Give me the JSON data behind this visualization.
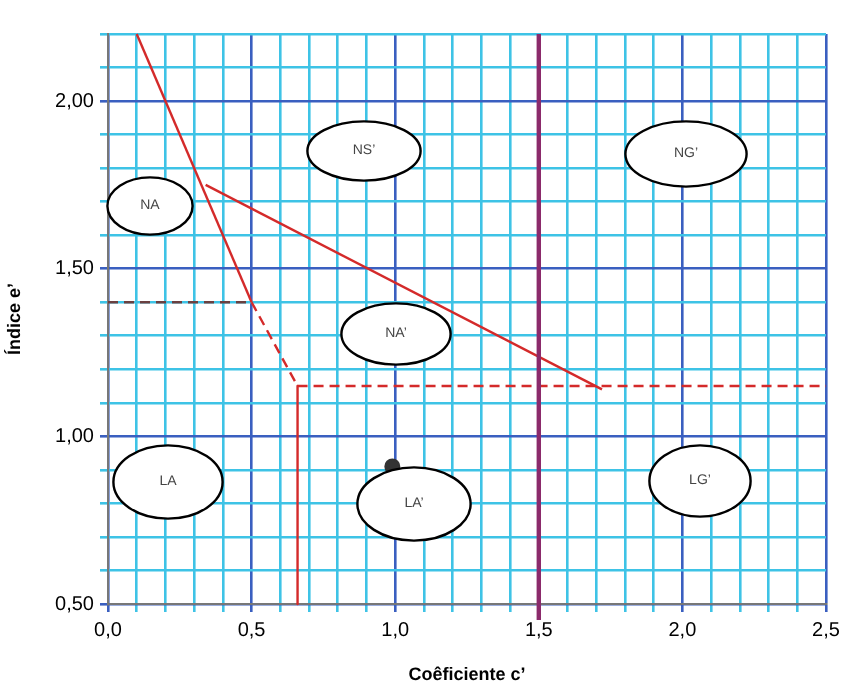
{
  "chart_data": {
    "type": "line",
    "xlabel": "Coêficiente c’",
    "ylabel": "Índice e’",
    "xlim": [
      0,
      2.5
    ],
    "ylim": [
      0.5,
      2.2
    ],
    "xticks": [
      {
        "value": 0,
        "label": "0,0"
      },
      {
        "value": 0.1,
        "label": null
      },
      {
        "value": 0.2,
        "label": null
      },
      {
        "value": 0.3,
        "label": null
      },
      {
        "value": 0.4,
        "label": null
      },
      {
        "value": 0.5,
        "label": "0,5"
      },
      {
        "value": 0.6,
        "label": null
      },
      {
        "value": 0.7,
        "label": null
      },
      {
        "value": 0.8,
        "label": null
      },
      {
        "value": 0.9,
        "label": null
      },
      {
        "value": 1,
        "label": "1,0"
      },
      {
        "value": 1.1,
        "label": null
      },
      {
        "value": 1.2,
        "label": null
      },
      {
        "value": 1.3,
        "label": null
      },
      {
        "value": 1.4,
        "label": null
      },
      {
        "value": 1.5,
        "label": "1,5"
      },
      {
        "value": 1.6,
        "label": null
      },
      {
        "value": 1.7,
        "label": null
      },
      {
        "value": 1.8,
        "label": null
      },
      {
        "value": 1.9,
        "label": null
      },
      {
        "value": 2,
        "label": "2,0"
      },
      {
        "value": 2.1,
        "label": null
      },
      {
        "value": 2.2,
        "label": null
      },
      {
        "value": 2.3,
        "label": null
      },
      {
        "value": 2.4,
        "label": null
      },
      {
        "value": 2.5,
        "label": "2,5"
      }
    ],
    "yticks": [
      {
        "value": 0.5,
        "label": "0,50"
      },
      {
        "value": 0.6,
        "label": null
      },
      {
        "value": 0.7,
        "label": null
      },
      {
        "value": 0.8,
        "label": null
      },
      {
        "value": 0.9,
        "label": null
      },
      {
        "value": 1,
        "label": "1,00"
      },
      {
        "value": 1.1,
        "label": null
      },
      {
        "value": 1.2,
        "label": null
      },
      {
        "value": 1.3,
        "label": null
      },
      {
        "value": 1.4,
        "label": null
      },
      {
        "value": 1.5,
        "label": "1,50"
      },
      {
        "value": 1.6,
        "label": null
      },
      {
        "value": 1.7,
        "label": null
      },
      {
        "value": 1.8,
        "label": null
      },
      {
        "value": 1.9,
        "label": null
      },
      {
        "value": 2,
        "label": "2,00"
      },
      {
        "value": 2.1,
        "label": null
      },
      {
        "value": 2.2,
        "label": null
      }
    ],
    "grid": true,
    "legend": false,
    "series": [
      {
        "color": "#d42a2a",
        "x": [
          0.1,
          0.5
        ],
        "values": [
          2.2,
          1.4
        ],
        "line_style": "solid"
      },
      {
        "color": "#d42a2a",
        "x": [
          0.5,
          0.66
        ],
        "values": [
          1.4,
          1.15
        ],
        "line_style": "dashed"
      },
      {
        "color": "#6a4040",
        "x": [
          0,
          0.5
        ],
        "values": [
          1.4,
          1.4
        ],
        "line_style": "dashed"
      },
      {
        "color": "#d42a2a",
        "x": [
          0.66,
          0.66
        ],
        "values": [
          1.15,
          0.5
        ],
        "line_style": "solid"
      },
      {
        "color": "#d42a2a",
        "x": [
          0.66,
          2.5
        ],
        "values": [
          1.15,
          1.15
        ],
        "line_style": "dashed"
      },
      {
        "color": "#d42a2a",
        "x": [
          0.34,
          1.72
        ],
        "values": [
          1.75,
          1.14
        ],
        "line_style": "solid"
      },
      {
        "type": "scatter",
        "color": "#333333",
        "x": [
          0.99
        ],
        "values": [
          0.91
        ],
        "marker": "circle"
      }
    ],
    "ref_lines": [
      {
        "axis": "x",
        "value": 1.5,
        "color": "#8b2a6b"
      }
    ],
    "annotations": [
      "NA",
      "NS’",
      "NG’",
      "NA’",
      "LA",
      "LA’",
      "LG’"
    ]
  }
}
